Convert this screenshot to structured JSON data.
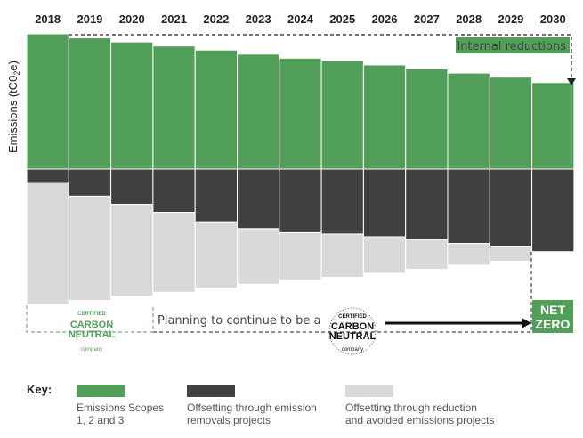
{
  "chart_data": {
    "type": "bar",
    "categories": [
      "2018",
      "2019",
      "2020",
      "2021",
      "2022",
      "2023",
      "2024",
      "2025",
      "2026",
      "2027",
      "2028",
      "2029",
      "2030"
    ],
    "ylabel": "Emissions (tC0",
    "ylabel_sub": "2",
    "ylabel_end": "e)",
    "series": [
      {
        "name": "Emissions Scopes 1, 2 and 3",
        "color": "#529f5a",
        "values": [
          100,
          97,
          94,
          91,
          88,
          85,
          82,
          80,
          77,
          74,
          71,
          68,
          64
        ]
      },
      {
        "name": "Offsetting through emission removals projects",
        "color": "#404040",
        "values": [
          10,
          20,
          26,
          32,
          39,
          44,
          47,
          48,
          50,
          52,
          55,
          57,
          61
        ]
      },
      {
        "name": "Offsetting through reduction and avoided emissions projects",
        "color": "#d9d9d9",
        "values": [
          90,
          77,
          68,
          59,
          49,
          41,
          35,
          32,
          27,
          22,
          16,
          11,
          0
        ]
      }
    ],
    "annotations": {
      "internal_reductions": "Internal reductions",
      "planning": "Planning to continue to be a",
      "net_zero_line1": "NET",
      "net_zero_line2": "ZERO"
    }
  },
  "badge": {
    "line1": "CERTIFIED",
    "line2": "CARBON",
    "line3": "NEUTRAL",
    "line4": "company"
  },
  "key": {
    "title": "Key:",
    "items": [
      {
        "label": "Emissions Scopes\n1, 2 and 3",
        "color": "#529f5a"
      },
      {
        "label": "Offsetting through emission\nremovals projects",
        "color": "#404040"
      },
      {
        "label": "Offsetting through reduction\nand avoided emissions projects",
        "color": "#d9d9d9"
      }
    ]
  }
}
